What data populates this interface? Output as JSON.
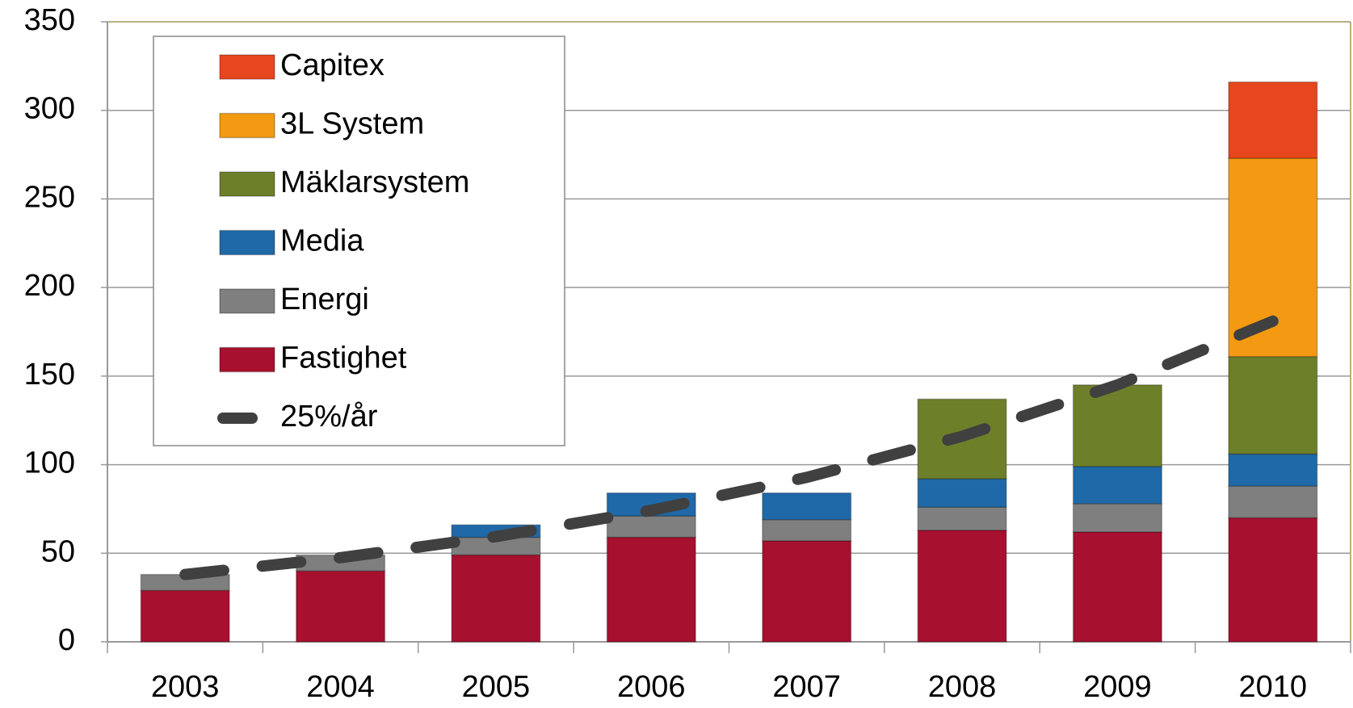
{
  "chart_data": {
    "type": "bar",
    "stacked": true,
    "categories": [
      "2003",
      "2004",
      "2005",
      "2006",
      "2007",
      "2008",
      "2009",
      "2010"
    ],
    "series": [
      {
        "name": "Fastighet",
        "color": "#a8102f",
        "values": [
          29,
          40,
          49,
          59,
          57,
          63,
          62,
          70
        ]
      },
      {
        "name": "Energi",
        "color": "#7f7f7f",
        "values": [
          9,
          9,
          10,
          12,
          12,
          13,
          16,
          18
        ]
      },
      {
        "name": "Media",
        "color": "#1f69a8",
        "values": [
          0,
          0,
          7,
          13,
          15,
          16,
          21,
          18
        ]
      },
      {
        "name": "Mäklarsystem",
        "color": "#6e7f2a",
        "values": [
          0,
          0,
          0,
          0,
          0,
          45,
          46,
          55
        ]
      },
      {
        "name": "3L System",
        "color": "#f49a12",
        "values": [
          0,
          0,
          0,
          0,
          0,
          0,
          0,
          112
        ]
      },
      {
        "name": "Capitex",
        "color": "#e8461c",
        "values": [
          0,
          0,
          0,
          0,
          0,
          0,
          0,
          43
        ]
      },
      {
        "name": "25%/år",
        "type": "line",
        "dashed": true,
        "color": "#404040",
        "values": [
          38,
          47.5,
          59.4,
          74.2,
          92.8,
          116,
          145,
          181
        ]
      }
    ],
    "ylim": [
      0,
      350
    ],
    "yticks": [
      0,
      50,
      100,
      150,
      200,
      250,
      300,
      350
    ],
    "grid": true,
    "legend": "upper left"
  }
}
